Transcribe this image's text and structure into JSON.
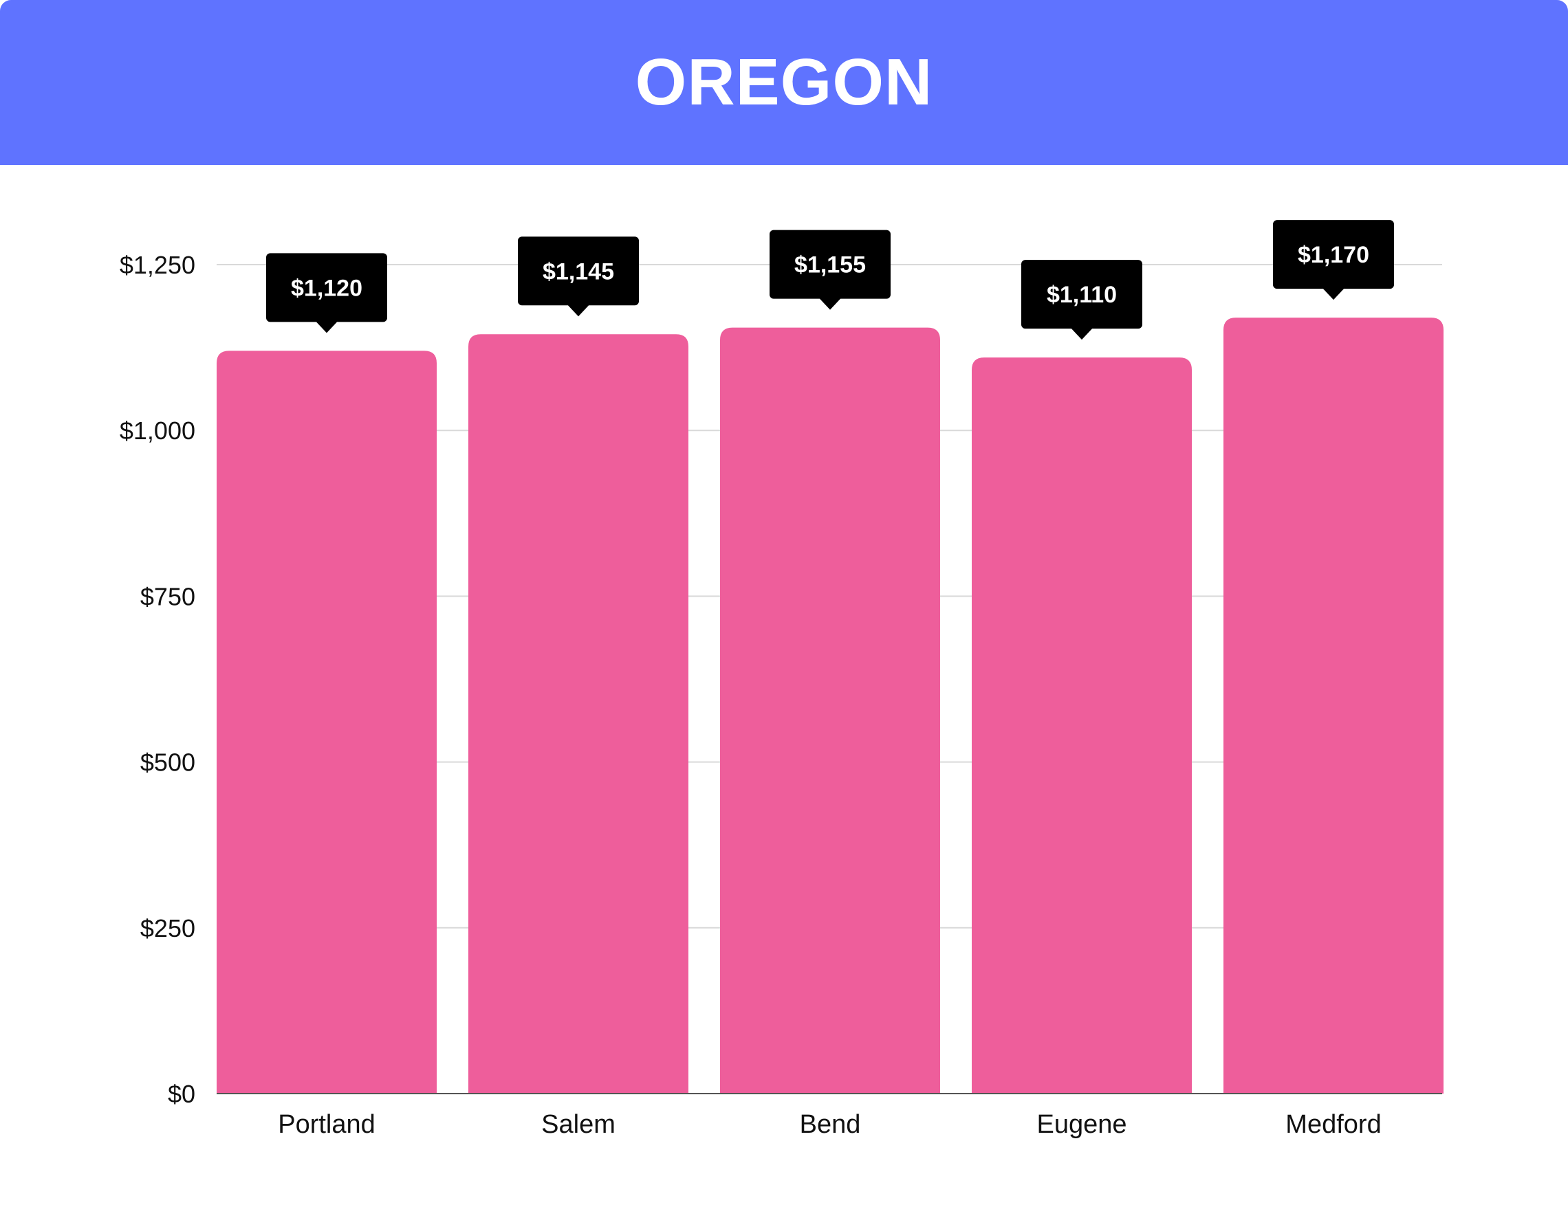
{
  "header": {
    "title": "OREGON"
  },
  "chart_data": {
    "type": "bar",
    "title": "OREGON",
    "categories": [
      "Portland",
      "Salem",
      "Bend",
      "Eugene",
      "Medford"
    ],
    "values": [
      1120,
      1145,
      1155,
      1110,
      1170
    ],
    "value_labels": [
      "$1,120",
      "$1,145",
      "$1,155",
      "$1,110",
      "$1,170"
    ],
    "xlabel": "",
    "ylabel": "",
    "ylim": [
      0,
      1250
    ],
    "yticks": [
      0,
      250,
      500,
      750,
      1000,
      1250
    ],
    "ytick_labels": [
      "$0",
      "$250",
      "$500",
      "$750",
      "$1,000",
      "$1,250"
    ],
    "grid": true,
    "legend": "none"
  },
  "colors": {
    "header_bg": "#5f73ff",
    "bar": "#ee5e9b",
    "label_bg": "#000000",
    "grid": "#d9d9d9",
    "axis": "#555555"
  }
}
